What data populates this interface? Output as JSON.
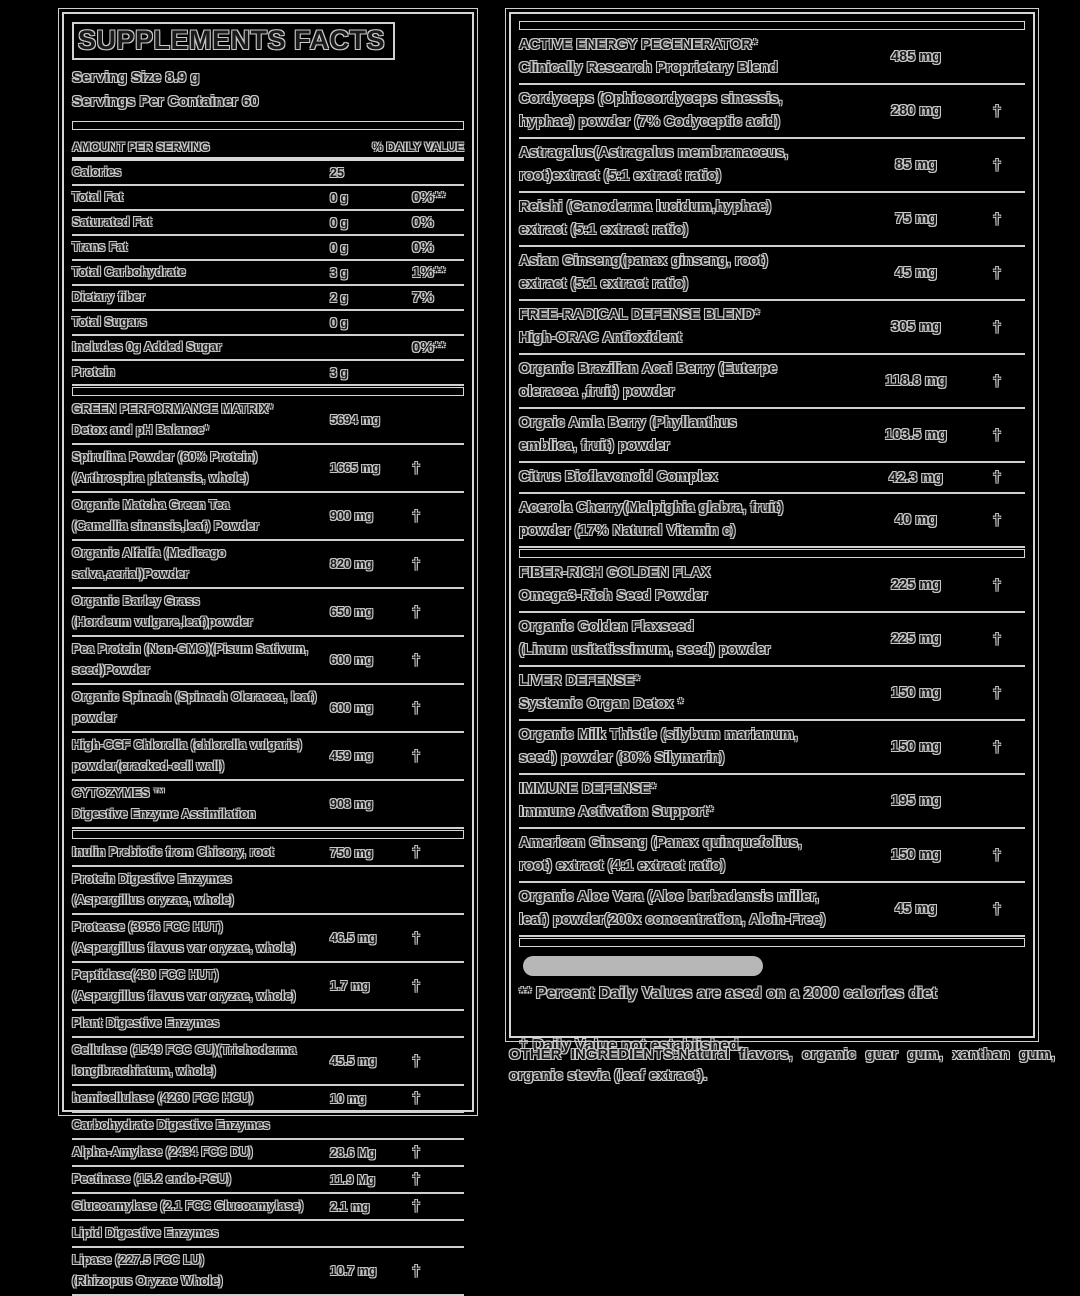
{
  "header": {
    "title": "SUPPLEMENTS FACTS",
    "serving_size": "Serving Size 8.9 g",
    "servings_per_container": "Servings Per Container 60",
    "amount_col": "AMOUNT PER SERVING",
    "dv_col": "% DAILY VALUE"
  },
  "left_rows": [
    {
      "type": "item",
      "cls": "nut",
      "lines": [
        "Calories"
      ],
      "amount": "25",
      "mark": ""
    },
    {
      "type": "item",
      "cls": "nut",
      "lines": [
        "Total Fat"
      ],
      "amount": "0 g",
      "mark": "0%**"
    },
    {
      "type": "item",
      "cls": "nut",
      "lines": [
        "Saturated Fat"
      ],
      "amount": "0 g",
      "mark": "0%"
    },
    {
      "type": "item",
      "cls": "nut",
      "lines": [
        "Trans Fat"
      ],
      "amount": "0 g",
      "mark": "0%"
    },
    {
      "type": "item",
      "cls": "nut",
      "lines": [
        "Total Carbohydrate"
      ],
      "amount": "3 g",
      "mark": "1%**"
    },
    {
      "type": "item",
      "cls": "nut",
      "lines": [
        "Dietary fiber"
      ],
      "amount": "2 g",
      "mark": "7%"
    },
    {
      "type": "item",
      "cls": "nut",
      "lines": [
        "Total Sugars"
      ],
      "amount": "0 g",
      "mark": ""
    },
    {
      "type": "item",
      "cls": "nut",
      "lines": [
        "Includes 0g Added Sugar"
      ],
      "amount": "",
      "mark": "0%**"
    },
    {
      "type": "item",
      "cls": "nut",
      "lines": [
        "Protein"
      ],
      "amount": "3 g",
      "mark": ""
    },
    {
      "type": "bar"
    },
    {
      "type": "item",
      "lines": [
        "GREEN PERFORMANCE MATRIX*",
        "Detox and pH Balance*"
      ],
      "amount": "5694 mg",
      "mark": ""
    },
    {
      "type": "item",
      "lines": [
        "Spirulina Powder (60% Protein)",
        "(Arthrospira platensis, whole)"
      ],
      "amount": "1665 mg",
      "mark": "†"
    },
    {
      "type": "item",
      "lines": [
        "Organic Matcha Green Tea",
        "(Camellia sinensis,leaf) Powder"
      ],
      "amount": "900 mg",
      "mark": "†"
    },
    {
      "type": "item",
      "lines": [
        "Organic Alfalfa (Medicago salva,aerial)Powder"
      ],
      "amount": "820 mg",
      "mark": "†"
    },
    {
      "type": "item",
      "lines": [
        "Organic Barley Grass",
        "(Hordeum vulgare,leaf)powder"
      ],
      "amount": "650 mg",
      "mark": "†"
    },
    {
      "type": "item",
      "lines": [
        "Pea Protein (Non-GMO)(Pisum Sativum, seed)Powder"
      ],
      "amount": "600 mg",
      "mark": "†"
    },
    {
      "type": "item",
      "lines": [
        "Organic Spinach (Spinach Oleracea, leaf) powder"
      ],
      "amount": "600 mg",
      "mark": "†"
    },
    {
      "type": "item",
      "lines": [
        "High-CGF Chlorella (chlorella vulgaris)",
        "powder(cracked-cell wall)"
      ],
      "amount": "459 mg",
      "mark": "†"
    },
    {
      "type": "item",
      "lines": [
        "CYTOZYMES ™",
        "Digestive Enzyme Assimilation"
      ],
      "amount": "908 mg",
      "mark": ""
    },
    {
      "type": "bar"
    },
    {
      "type": "item",
      "lines": [
        "Inulin Prebiotic from Chicory, root"
      ],
      "amount": "750 mg",
      "mark": "†"
    },
    {
      "type": "item",
      "lines": [
        "Protein Digestive Enzymes",
        "(Aspergillus oryzae, whole)"
      ],
      "amount": "",
      "mark": ""
    },
    {
      "type": "item",
      "lines": [
        "Protease (3956 FCC HUT)",
        "(Aspergillus flavus var oryzae, whole)"
      ],
      "amount": "46.5 mg",
      "mark": "†"
    },
    {
      "type": "item",
      "lines": [
        "Peptidase(430 FCC HUT)",
        "(Aspergillus flavus var oryzae, whole)"
      ],
      "amount": "1.7 mg",
      "mark": "†"
    },
    {
      "type": "item",
      "lines": [
        "Plant Digestive Enzymes"
      ],
      "amount": "",
      "mark": ""
    },
    {
      "type": "item",
      "lines": [
        "Cellulase (1549 FCC CU)(Trichoderma longibrachiatum, whole)"
      ],
      "amount": "45.5 mg",
      "mark": "†"
    },
    {
      "type": "item",
      "lines": [
        "hemicellulase (4260 FCC HCU)"
      ],
      "amount": "10 mg",
      "mark": "†"
    },
    {
      "type": "item",
      "lines": [
        "Carbohydrate Digestive Enzymes"
      ],
      "amount": "",
      "mark": ""
    },
    {
      "type": "item",
      "lines": [
        "Alpha-Amylase (2434 FCC DU)"
      ],
      "amount": "28.6 Mg",
      "mark": "†"
    },
    {
      "type": "item",
      "lines": [
        "Pectinase (15.2 endo-PGU)"
      ],
      "amount": "11.9 Mg",
      "mark": "†"
    },
    {
      "type": "item",
      "lines": [
        "Glucoamylase (2.1 FCC Glucoamylase)"
      ],
      "amount": "2.1 mg",
      "mark": "†"
    },
    {
      "type": "item",
      "lines": [
        "Lipid Digestive Enzymes"
      ],
      "amount": "",
      "mark": ""
    },
    {
      "type": "item",
      "lines": [
        "Lipase (227.5 FCC LU)",
        "(Rhizopus Oryzae Whole)"
      ],
      "amount": "10.7 mg",
      "mark": "†"
    }
  ],
  "right_rows": [
    {
      "type": "bar"
    },
    {
      "type": "item",
      "lines": [
        "ACTIVE ENERGY PEGENERATOR*",
        "Clinically Research Proprietary Blend"
      ],
      "amount": "485 mg",
      "mark": ""
    },
    {
      "type": "item",
      "lines": [
        "Cordyceps (Ophiocordyceps sinessis,",
        "hyphae) powder (7% Codyceptic acid)"
      ],
      "amount": "280 mg",
      "mark": "†"
    },
    {
      "type": "item",
      "lines": [
        "Astragalus(Astragalus membranaceus,",
        "root)extract (5:1 extract ratio)"
      ],
      "amount": "85 mg",
      "mark": "†"
    },
    {
      "type": "item",
      "lines": [
        "Reishi (Ganoderma lucidum,hyphae)",
        "extract (5:1 extract ratio)"
      ],
      "amount": "75 mg",
      "mark": "†"
    },
    {
      "type": "item",
      "lines": [
        "Asian Ginseng(panax ginseng, root)",
        "extract (5:1 extract ratio)"
      ],
      "amount": "45 mg",
      "mark": "†"
    },
    {
      "type": "item",
      "lines": [
        "FREE-RADICAL DEFENSE BLEND*",
        "High-ORAC Antioxident"
      ],
      "amount": "305 mg",
      "mark": "†"
    },
    {
      "type": "item",
      "lines": [
        "Organic Brazilian Acai Berry (Euterpe",
        "oleracea ,fruit) powder"
      ],
      "amount": "118.8 mg",
      "mark": "†"
    },
    {
      "type": "item",
      "lines": [
        "Orgaic Amla Berry (Phyllanthus",
        "emblica, fruit) powder"
      ],
      "amount": "103.5 mg",
      "mark": "†"
    },
    {
      "type": "item",
      "lines": [
        "Citrus Bioflavonoid Complex"
      ],
      "amount": "42.3 mg",
      "mark": "†"
    },
    {
      "type": "item",
      "lines": [
        "Acerola Cherry(Malpighia glabra, fruit)",
        "powder (17% Natural Vitamin c)"
      ],
      "amount": "40 mg",
      "mark": "†"
    },
    {
      "type": "bar"
    },
    {
      "type": "item",
      "lines": [
        "FIBER-RICH GOLDEN FLAX",
        "Omega3-Rich Seed Powder"
      ],
      "amount": "225 mg",
      "mark": "†"
    },
    {
      "type": "item",
      "lines": [
        "Organic Golden Flaxseed",
        "(Linum usitatissimum, seed) powder"
      ],
      "amount": "225 mg",
      "mark": "†"
    },
    {
      "type": "item",
      "lines": [
        "LIVER DEFENSE*",
        "Systemic Organ Detox *"
      ],
      "amount": "150 mg",
      "mark": "†"
    },
    {
      "type": "item",
      "lines": [
        "Organic Milk Thistle (silybum marianum,",
        "seed) powder (80% Silymarin)"
      ],
      "amount": "150 mg",
      "mark": "†"
    },
    {
      "type": "item",
      "lines": [
        "IMMUNE DEFENSE*",
        "Immune Activation Support*"
      ],
      "amount": "195 mg",
      "mark": ""
    },
    {
      "type": "item",
      "lines": [
        "American Ginseng (Panax quinquefolius,",
        "root) extract (4:1 extract ratio)"
      ],
      "amount": "150 mg",
      "mark": "†"
    },
    {
      "type": "item",
      "lines": [
        "Organic Aloe Vera (Aloe barbadensis miller,",
        "leaf) powder(200x concentration, Aloin-Free)"
      ],
      "amount": "45 mg",
      "mark": "†"
    },
    {
      "type": "bar"
    },
    {
      "type": "pill"
    }
  ],
  "footnotes": {
    "dv_note": "** Percent Daily Values are ased on a 2000 calories diet",
    "dagger_note": "† Daily Value not established."
  },
  "other_ingredients": "OTHER INGREDIENTS:Natural flavors, organic guar gum, xanthan gum, organic stevia (leaf extract).",
  "colors": {
    "background": "#000000",
    "text_fill": "#1a1a1a",
    "text_outline": "#c9c9c9",
    "border": "#d6d6d6",
    "pill": "#b7b7b7"
  }
}
